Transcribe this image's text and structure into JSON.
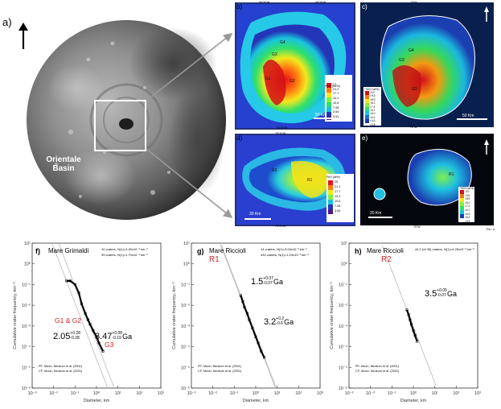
{
  "top": {
    "label": "a)",
    "basin_label": [
      "Orientale",
      "Basin"
    ],
    "fig_tag": "Fin. 4",
    "panels": [
      {
        "label": "b)",
        "scale": "50 Km",
        "title": "FeO (wt%)",
        "ticks": [
          "27",
          "21.2",
          "17.7",
          "14.1",
          "10.6",
          "7.08",
          "3.54",
          "3.51"
        ],
        "units": [
          "G1",
          "G2",
          "G3",
          "G4"
        ],
        "coords": [
          "69°20'W",
          "65°20'W",
          "66°20'W"
        ]
      },
      {
        "label": "c)",
        "scale": "50 Km",
        "title": "TiO2 (wt%)",
        "ticks": [
          ">10",
          ">9.6",
          ">8.9",
          ">8.1",
          ">7.4",
          ">6.7",
          ">6.0",
          ">5.2",
          ">4.5",
          ">3.8"
        ],
        "units": [
          "G4",
          "G3",
          "G2"
        ],
        "coords": [
          "70°W",
          "70°W"
        ]
      },
      {
        "label": "d)",
        "scale": "30 Km",
        "title": "FeO (wt%)",
        "ticks": [
          "25",
          "21.1",
          "17.7",
          "14.1",
          "10.6",
          "7.08",
          "3.54"
        ],
        "units": [
          "R1",
          "R2"
        ],
        "coords": [
          "75°20'W",
          "75°20'W"
        ]
      },
      {
        "label": "e)",
        "scale": "20 Km",
        "title": "TiO2 (wt%)",
        "ticks": [
          ">10",
          ">9.6",
          ">8.9",
          ">8.1",
          ">7.4",
          ">6.7",
          ">6.0",
          ">5.2",
          ">4.5"
        ],
        "units": [
          "R1"
        ],
        "coords": [
          "75°W"
        ]
      }
    ]
  },
  "plots": [
    {
      "label": "f)",
      "name": "Mare Grimaldi",
      "legend": [
        "10 craters, N(1)=4.40x10⁻³ km⁻²",
        "39 craters, N(1)=1.70x10⁻³ km⁻²"
      ],
      "units": [
        "G1 & G2",
        "G3"
      ],
      "ages": [
        {
          "age": "2.05",
          "plus": "+0.28",
          "minus": "-0.28",
          "unit": "Ga"
        },
        {
          "age": "3.47",
          "plus": "+0.08",
          "minus": "-0.19",
          "unit": "Ga"
        }
      ],
      "pf": "PF: Moon, Neukum et al. (2001)",
      "cf": "CF: Moon, Neukum et al. (2001)"
    },
    {
      "label": "g)",
      "name": "Mare Riccioli",
      "unit": "R1",
      "legend": [
        "14 craters, N(1)=3.04x10⁻³ km⁻²",
        "432 craters, N(1)=1.23x10⁻³ km⁻²"
      ],
      "ages": [
        {
          "age": "1.5",
          "plus": "+0.07",
          "minus": "-0.07",
          "unit": "Ga"
        },
        {
          "age": "3.2",
          "plus": "+0.2",
          "minus": "-0.6",
          "unit": "Ga"
        }
      ],
      "pf": "PF: Moon, Neukum et al. (2001)",
      "cf": "CF: Moon, Neukum et al. (2001)"
    },
    {
      "label": "h)",
      "name": "Mare Riccioli",
      "unit": "R2",
      "legend": [
        "44.1 (of 45) craters, N(1)=4.25x10⁻³ km⁻²"
      ],
      "ages": [
        {
          "age": "3.5",
          "plus": "+0.05",
          "minus": "-0.07",
          "unit": "Ga"
        }
      ],
      "pf": "PF: Moon, Neukum et al. (2001)",
      "cf": "CF: Moon, Neukum et al. (2001)"
    }
  ],
  "chart_data": [
    {
      "type": "scatter",
      "title": "f) Mare Grimaldi",
      "xlabel": "Diameter, km",
      "ylabel": "Cumulative crater frequency, km⁻²",
      "xscale": "log",
      "yscale": "log",
      "xlim": [
        0.001,
        1000
      ],
      "ylim": [
        1e-06,
        10
      ],
      "x_ticks": [
        "10⁻³",
        "10⁻²",
        "10⁻¹",
        "10⁰",
        "10¹",
        "10²",
        "10³"
      ],
      "y_ticks": [
        "10⁻⁶",
        "10⁻⁵",
        "10⁻⁴",
        "10⁻³",
        "10⁻²",
        "10⁻¹",
        "10⁰",
        "10¹"
      ],
      "series": [
        {
          "name": "10 craters",
          "x": [
            0.04,
            0.06,
            0.1,
            0.15,
            0.2,
            0.3,
            0.4
          ],
          "y": [
            0.15,
            0.15,
            0.1,
            0.04,
            0.012,
            0.004,
            0.002
          ]
        },
        {
          "name": "39 craters",
          "x": [
            0.4,
            0.5,
            0.7,
            1.0,
            1.3,
            2.0
          ],
          "y": [
            0.002,
            0.0012,
            0.0006,
            0.0003,
            0.00015,
            6e-05
          ]
        }
      ]
    },
    {
      "type": "scatter",
      "title": "g) Mare Riccioli R1",
      "xlabel": "Diameter, km",
      "ylabel": "Cumulative crater frequency, km⁻²",
      "xscale": "log",
      "yscale": "log",
      "xlim": [
        0.001,
        1000
      ],
      "ylim": [
        1e-06,
        10
      ],
      "x_ticks": [
        "10⁻³",
        "10⁻²",
        "10⁻¹",
        "10⁰",
        "10¹",
        "10²",
        "10³"
      ],
      "y_ticks": [
        "10⁻⁶",
        "10⁻⁵",
        "10⁻⁴",
        "10⁻³",
        "10⁻²",
        "10⁻¹",
        "10⁰",
        "10¹"
      ],
      "series": [
        {
          "name": "14 craters",
          "x": [
            0.2,
            0.25,
            0.3,
            0.4,
            0.5
          ],
          "y": [
            0.03,
            0.015,
            0.008,
            0.004,
            0.002
          ]
        },
        {
          "name": "432 craters",
          "x": [
            0.5,
            0.7,
            1.0,
            1.3,
            1.8,
            2.5
          ],
          "y": [
            0.002,
            0.0008,
            0.0003,
            0.00015,
            6e-05,
            3e-05
          ]
        }
      ]
    },
    {
      "type": "scatter",
      "title": "h) Mare Riccioli R2",
      "xlabel": "Diameter, km",
      "ylabel": "Cumulative crater frequency, km⁻²",
      "xscale": "log",
      "yscale": "log",
      "xlim": [
        0.001,
        1000
      ],
      "ylim": [
        1e-06,
        10
      ],
      "x_ticks": [
        "10⁻³",
        "10⁻²",
        "10⁻¹",
        "10⁰",
        "10¹",
        "10²",
        "10³"
      ],
      "y_ticks": [
        "10⁻⁶",
        "10⁻⁵",
        "10⁻⁴",
        "10⁻³",
        "10⁻²",
        "10⁻¹",
        "10⁰",
        "10¹"
      ],
      "series": [
        {
          "name": "44.1 (of 45) craters",
          "x": [
            0.5,
            0.6,
            0.7,
            0.8,
            1.0,
            1.2,
            1.5
          ],
          "y": [
            0.006,
            0.0035,
            0.002,
            0.0012,
            0.0006,
            0.00035,
            0.00018
          ]
        }
      ]
    }
  ]
}
